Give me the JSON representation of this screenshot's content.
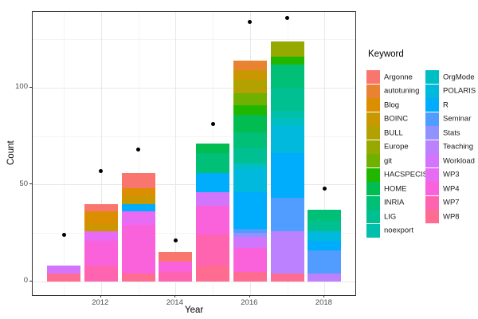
{
  "chart_data": {
    "type": "bar",
    "subtype": "stacked-bars-with-points",
    "title": "",
    "xlabel": "Year",
    "ylabel": "Count",
    "legend_title": "Keyword",
    "legend_position": "right",
    "grid": true,
    "x_major_ticks": [
      2012,
      2014,
      2016,
      2018
    ],
    "x_minor_ticks": [
      2011,
      2013,
      2015,
      2017
    ],
    "y_major_ticks": [
      0,
      50,
      100
    ],
    "y_minor_ticks": [
      25,
      75,
      125
    ],
    "xlim": [
      2010.2,
      2018.8
    ],
    "ylim": [
      -7,
      139
    ],
    "keywords": [
      {
        "label": "Argonne",
        "color": "#F8766D"
      },
      {
        "label": "autotuning",
        "color": "#EA8331"
      },
      {
        "label": "Blog",
        "color": "#DB8E00"
      },
      {
        "label": "BOINC",
        "color": "#C99800"
      },
      {
        "label": "BULL",
        "color": "#B2A100"
      },
      {
        "label": "Europe",
        "color": "#95A900"
      },
      {
        "label": "git",
        "color": "#6FB000"
      },
      {
        "label": "HACSPECIS",
        "color": "#21B700"
      },
      {
        "label": "HOME",
        "color": "#00BC51"
      },
      {
        "label": "INRIA",
        "color": "#00BF76"
      },
      {
        "label": "LIG",
        "color": "#00C091"
      },
      {
        "label": "noexport",
        "color": "#00C0AC"
      },
      {
        "label": "OrgMode",
        "color": "#00BFC4"
      },
      {
        "label": "POLARIS",
        "color": "#00B9DD"
      },
      {
        "label": "R",
        "color": "#00ACFC"
      },
      {
        "label": "Seminar",
        "color": "#519CFF"
      },
      {
        "label": "Stats",
        "color": "#9092FF"
      },
      {
        "label": "Teaching",
        "color": "#BC81FF"
      },
      {
        "label": "Workload",
        "color": "#D375FC"
      },
      {
        "label": "WP3",
        "color": "#E76BF3"
      },
      {
        "label": "WP4",
        "color": "#FA62DB"
      },
      {
        "label": "WP7",
        "color": "#FF64B0"
      },
      {
        "label": "WP8",
        "color": "#FF6C92"
      }
    ],
    "bars": [
      {
        "year": 2011,
        "total": 8,
        "segments": [
          {
            "keyword": "WP8",
            "value": 4
          },
          {
            "keyword": "Workload",
            "value": 4
          }
        ]
      },
      {
        "year": 2012,
        "total": 40,
        "segments": [
          {
            "keyword": "WP7",
            "value": 8
          },
          {
            "keyword": "WP4",
            "value": 13
          },
          {
            "keyword": "WP3",
            "value": 5
          },
          {
            "keyword": "BOINC",
            "value": 3
          },
          {
            "keyword": "Blog",
            "value": 7
          },
          {
            "keyword": "Argonne",
            "value": 4
          }
        ]
      },
      {
        "year": 2013,
        "total": 56,
        "segments": [
          {
            "keyword": "WP8",
            "value": 4
          },
          {
            "keyword": "WP4",
            "value": 25
          },
          {
            "keyword": "WP3",
            "value": 7
          },
          {
            "keyword": "R",
            "value": 4
          },
          {
            "keyword": "BOINC",
            "value": 4
          },
          {
            "keyword": "Blog",
            "value": 4
          },
          {
            "keyword": "Argonne",
            "value": 8
          }
        ]
      },
      {
        "year": 2014,
        "total": 15,
        "segments": [
          {
            "keyword": "WP7",
            "value": 5
          },
          {
            "keyword": "WP4",
            "value": 5
          },
          {
            "keyword": "Argonne",
            "value": 5
          }
        ]
      },
      {
        "year": 2015,
        "total": 71,
        "segments": [
          {
            "keyword": "WP8",
            "value": 8
          },
          {
            "keyword": "WP7",
            "value": 16
          },
          {
            "keyword": "WP4",
            "value": 15
          },
          {
            "keyword": "Workload",
            "value": 7
          },
          {
            "keyword": "R",
            "value": 10
          },
          {
            "keyword": "INRIA",
            "value": 10
          },
          {
            "keyword": "HOME",
            "value": 5
          }
        ]
      },
      {
        "year": 2016,
        "total": 114,
        "segments": [
          {
            "keyword": "WP8",
            "value": 5
          },
          {
            "keyword": "WP4",
            "value": 12
          },
          {
            "keyword": "Workload",
            "value": 6
          },
          {
            "keyword": "Stats",
            "value": 2
          },
          {
            "keyword": "Seminar",
            "value": 2
          },
          {
            "keyword": "R",
            "value": 19
          },
          {
            "keyword": "POLARIS",
            "value": 12
          },
          {
            "keyword": "OrgMode",
            "value": 3
          },
          {
            "keyword": "LIG",
            "value": 8
          },
          {
            "keyword": "INRIA",
            "value": 8
          },
          {
            "keyword": "HOME",
            "value": 9
          },
          {
            "keyword": "HACSPECIS",
            "value": 5
          },
          {
            "keyword": "git",
            "value": 6
          },
          {
            "keyword": "BULL",
            "value": 7
          },
          {
            "keyword": "BOINC",
            "value": 5
          },
          {
            "keyword": "autotuning",
            "value": 5
          }
        ]
      },
      {
        "year": 2017,
        "total": 124,
        "segments": [
          {
            "keyword": "WP8",
            "value": 4
          },
          {
            "keyword": "Teaching",
            "value": 22
          },
          {
            "keyword": "Seminar",
            "value": 17
          },
          {
            "keyword": "R",
            "value": 23
          },
          {
            "keyword": "POLARIS",
            "value": 14
          },
          {
            "keyword": "OrgMode",
            "value": 4
          },
          {
            "keyword": "noexport",
            "value": 4
          },
          {
            "keyword": "LIG",
            "value": 12
          },
          {
            "keyword": "INRIA",
            "value": 12
          },
          {
            "keyword": "HACSPECIS",
            "value": 4
          },
          {
            "keyword": "Europe",
            "value": 8
          }
        ]
      },
      {
        "year": 2018,
        "total": 37,
        "segments": [
          {
            "keyword": "Teaching",
            "value": 4
          },
          {
            "keyword": "Seminar",
            "value": 12
          },
          {
            "keyword": "R",
            "value": 5
          },
          {
            "keyword": "POLARIS",
            "value": 5
          },
          {
            "keyword": "LIG",
            "value": 5
          },
          {
            "keyword": "INRIA",
            "value": 6
          }
        ]
      }
    ],
    "points": [
      {
        "year": 2011,
        "value": 24
      },
      {
        "year": 2012,
        "value": 57
      },
      {
        "year": 2013,
        "value": 68
      },
      {
        "year": 2014,
        "value": 21
      },
      {
        "year": 2015,
        "value": 81
      },
      {
        "year": 2016,
        "value": 134
      },
      {
        "year": 2017,
        "value": 136
      },
      {
        "year": 2018,
        "value": 48
      }
    ]
  }
}
